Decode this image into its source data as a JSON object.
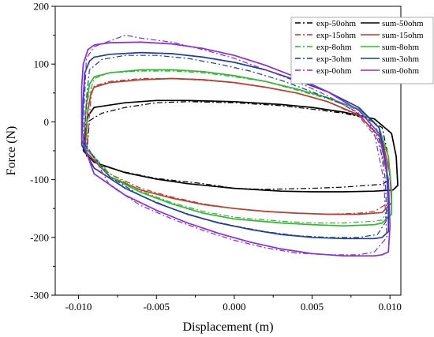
{
  "chart_data": {
    "type": "line",
    "xlabel": "Displacement (m)",
    "ylabel": "Force (N)",
    "xlim": [
      -0.0115,
      0.0107
    ],
    "ylim": [
      -300,
      200
    ],
    "xticks": [
      -0.01,
      -0.005,
      0.0,
      0.005,
      0.01
    ],
    "xtick_labels": [
      "-0.010",
      "-0.005",
      "0.000",
      "0.005",
      "0.010"
    ],
    "yticks": [
      -300,
      -200,
      -100,
      0,
      100,
      200
    ],
    "ytick_labels": [
      "-300",
      "-200",
      "-100",
      "0",
      "100",
      "200"
    ],
    "legend_position": "top-right",
    "legend_columns": 2,
    "series": [
      {
        "name": "exp-50ohm",
        "style": "dash-dot",
        "color": "#000000",
        "column": 0,
        "upper": [
          [
            -0.0095,
            -60
          ],
          [
            -0.0093,
            2
          ],
          [
            -0.0085,
            15
          ],
          [
            -0.007,
            25
          ],
          [
            -0.005,
            33
          ],
          [
            -0.003,
            35
          ],
          [
            0.0,
            33
          ],
          [
            0.003,
            28
          ],
          [
            0.005,
            22
          ],
          [
            0.007,
            15
          ],
          [
            0.0085,
            6
          ],
          [
            0.0095,
            -10
          ],
          [
            0.0099,
            -60
          ],
          [
            0.01,
            -100
          ]
        ],
        "lower": [
          [
            0.01,
            -100
          ],
          [
            0.0095,
            -108
          ],
          [
            0.007,
            -113
          ],
          [
            0.005,
            -115
          ],
          [
            0.002,
            -117
          ],
          [
            0.0,
            -115
          ],
          [
            -0.002,
            -107
          ],
          [
            -0.005,
            -98
          ],
          [
            -0.007,
            -87
          ],
          [
            -0.0085,
            -76
          ],
          [
            -0.0095,
            -60
          ]
        ]
      },
      {
        "name": "sum-50ohm",
        "style": "solid",
        "color": "#000000",
        "column": 1,
        "upper": [
          [
            -0.0097,
            -50
          ],
          [
            -0.0094,
            10
          ],
          [
            -0.009,
            25
          ],
          [
            -0.007,
            33
          ],
          [
            -0.005,
            37
          ],
          [
            -0.003,
            37
          ],
          [
            0.0,
            35
          ],
          [
            0.003,
            30
          ],
          [
            0.005,
            25
          ],
          [
            0.007,
            17
          ],
          [
            0.009,
            5
          ],
          [
            0.0101,
            -20
          ],
          [
            0.0104,
            -60
          ],
          [
            0.0105,
            -110
          ]
        ],
        "lower": [
          [
            0.0105,
            -110
          ],
          [
            0.0102,
            -118
          ],
          [
            0.009,
            -120
          ],
          [
            0.007,
            -121
          ],
          [
            0.005,
            -121
          ],
          [
            0.003,
            -120
          ],
          [
            0.0,
            -115
          ],
          [
            -0.003,
            -107
          ],
          [
            -0.005,
            -99
          ],
          [
            -0.007,
            -88
          ],
          [
            -0.009,
            -70
          ],
          [
            -0.0097,
            -50
          ]
        ]
      },
      {
        "name": "exp-15ohm",
        "style": "dash-dot",
        "color": "#c0392b",
        "column": 0,
        "upper": [
          [
            -0.0095,
            -55
          ],
          [
            -0.0092,
            45
          ],
          [
            -0.009,
            62
          ],
          [
            -0.008,
            70
          ],
          [
            -0.006,
            75
          ],
          [
            -0.004,
            75
          ],
          [
            -0.002,
            72
          ],
          [
            0.0,
            68
          ],
          [
            0.002,
            60
          ],
          [
            0.004,
            50
          ],
          [
            0.006,
            35
          ],
          [
            0.008,
            10
          ],
          [
            0.0092,
            -30
          ],
          [
            0.0098,
            -90
          ],
          [
            0.0099,
            -140
          ]
        ],
        "lower": [
          [
            0.0099,
            -140
          ],
          [
            0.009,
            -155
          ],
          [
            0.008,
            -158
          ],
          [
            0.006,
            -160
          ],
          [
            0.004,
            -158
          ],
          [
            0.002,
            -155
          ],
          [
            0.0,
            -150
          ],
          [
            -0.002,
            -142
          ],
          [
            -0.004,
            -130
          ],
          [
            -0.006,
            -115
          ],
          [
            -0.008,
            -90
          ],
          [
            -0.0095,
            -55
          ]
        ]
      },
      {
        "name": "sum-15ohm",
        "style": "solid",
        "color": "#c0392b",
        "column": 1,
        "upper": [
          [
            -0.0096,
            -50
          ],
          [
            -0.0094,
            20
          ],
          [
            -0.0092,
            50
          ],
          [
            -0.009,
            60
          ],
          [
            -0.008,
            68
          ],
          [
            -0.006,
            73
          ],
          [
            -0.004,
            75
          ],
          [
            -0.002,
            73
          ],
          [
            0.0,
            68
          ],
          [
            0.002,
            60
          ],
          [
            0.004,
            50
          ],
          [
            0.006,
            35
          ],
          [
            0.008,
            12
          ],
          [
            0.0095,
            -30
          ],
          [
            0.01,
            -90
          ],
          [
            0.0101,
            -140
          ]
        ],
        "lower": [
          [
            0.0101,
            -140
          ],
          [
            0.0095,
            -157
          ],
          [
            0.008,
            -160
          ],
          [
            0.006,
            -160
          ],
          [
            0.004,
            -158
          ],
          [
            0.002,
            -155
          ],
          [
            0.0,
            -150
          ],
          [
            -0.002,
            -143
          ],
          [
            -0.004,
            -132
          ],
          [
            -0.006,
            -118
          ],
          [
            -0.008,
            -95
          ],
          [
            -0.0096,
            -50
          ]
        ]
      },
      {
        "name": "exp-8ohm",
        "style": "dash-dot",
        "color": "#2eb82e",
        "column": 0,
        "upper": [
          [
            -0.0095,
            -45
          ],
          [
            -0.0094,
            40
          ],
          [
            -0.009,
            75
          ],
          [
            -0.008,
            85
          ],
          [
            -0.006,
            88
          ],
          [
            -0.004,
            88
          ],
          [
            -0.002,
            85
          ],
          [
            0.0,
            78
          ],
          [
            0.002,
            70
          ],
          [
            0.004,
            55
          ],
          [
            0.006,
            40
          ],
          [
            0.008,
            20
          ],
          [
            0.009,
            0
          ],
          [
            0.0095,
            -40
          ],
          [
            0.0098,
            -100
          ],
          [
            0.0099,
            -150
          ]
        ],
        "lower": [
          [
            0.0099,
            -150
          ],
          [
            0.0095,
            -170
          ],
          [
            0.009,
            -172
          ],
          [
            0.007,
            -175
          ],
          [
            0.005,
            -175
          ],
          [
            0.003,
            -172
          ],
          [
            0.0,
            -165
          ],
          [
            -0.002,
            -155
          ],
          [
            -0.004,
            -140
          ],
          [
            -0.006,
            -120
          ],
          [
            -0.008,
            -90
          ],
          [
            -0.0095,
            -45
          ]
        ]
      },
      {
        "name": "sum-8ohm",
        "style": "solid",
        "color": "#2eb82e",
        "column": 1,
        "upper": [
          [
            -0.0097,
            -40
          ],
          [
            -0.0095,
            30
          ],
          [
            -0.0093,
            65
          ],
          [
            -0.009,
            78
          ],
          [
            -0.008,
            85
          ],
          [
            -0.006,
            90
          ],
          [
            -0.004,
            90
          ],
          [
            -0.002,
            87
          ],
          [
            0.0,
            80
          ],
          [
            0.002,
            70
          ],
          [
            0.004,
            57
          ],
          [
            0.006,
            42
          ],
          [
            0.008,
            22
          ],
          [
            0.0093,
            -10
          ],
          [
            0.0099,
            -60
          ],
          [
            0.0101,
            -120
          ],
          [
            0.0101,
            -160
          ]
        ],
        "lower": [
          [
            0.0101,
            -160
          ],
          [
            0.0095,
            -175
          ],
          [
            0.009,
            -178
          ],
          [
            0.007,
            -180
          ],
          [
            0.005,
            -178
          ],
          [
            0.003,
            -175
          ],
          [
            0.0,
            -168
          ],
          [
            -0.002,
            -158
          ],
          [
            -0.004,
            -142
          ],
          [
            -0.006,
            -122
          ],
          [
            -0.008,
            -95
          ],
          [
            -0.0097,
            -40
          ]
        ]
      },
      {
        "name": "exp-3ohm",
        "style": "dash-dot",
        "color": "#1f3fa0",
        "column": 0,
        "upper": [
          [
            -0.0096,
            -40
          ],
          [
            -0.0095,
            40
          ],
          [
            -0.0093,
            90
          ],
          [
            -0.0085,
            108
          ],
          [
            -0.007,
            115
          ],
          [
            -0.005,
            115
          ],
          [
            -0.003,
            110
          ],
          [
            -0.001,
            100
          ],
          [
            0.001,
            88
          ],
          [
            0.003,
            72
          ],
          [
            0.005,
            52
          ],
          [
            0.007,
            30
          ],
          [
            0.0085,
            5
          ],
          [
            0.0093,
            -30
          ],
          [
            0.0097,
            -100
          ],
          [
            0.0098,
            -170
          ]
        ],
        "lower": [
          [
            0.0098,
            -170
          ],
          [
            0.0092,
            -195
          ],
          [
            0.008,
            -200
          ],
          [
            0.006,
            -200
          ],
          [
            0.004,
            -197
          ],
          [
            0.002,
            -190
          ],
          [
            0.0,
            -180
          ],
          [
            -0.002,
            -168
          ],
          [
            -0.004,
            -150
          ],
          [
            -0.006,
            -128
          ],
          [
            -0.008,
            -95
          ],
          [
            -0.0096,
            -40
          ]
        ]
      },
      {
        "name": "sum-3ohm",
        "style": "solid",
        "color": "#1f3fa0",
        "column": 1,
        "upper": [
          [
            -0.0098,
            -40
          ],
          [
            -0.0097,
            40
          ],
          [
            -0.0096,
            85
          ],
          [
            -0.0093,
            105
          ],
          [
            -0.009,
            112
          ],
          [
            -0.008,
            117
          ],
          [
            -0.006,
            120
          ],
          [
            -0.004,
            118
          ],
          [
            -0.002,
            112
          ],
          [
            0.0,
            103
          ],
          [
            0.002,
            90
          ],
          [
            0.004,
            72
          ],
          [
            0.006,
            52
          ],
          [
            0.008,
            25
          ],
          [
            0.0093,
            -10
          ],
          [
            0.0098,
            -80
          ],
          [
            0.0099,
            -150
          ],
          [
            0.0099,
            -190
          ]
        ],
        "lower": [
          [
            0.0099,
            -190
          ],
          [
            0.0095,
            -200
          ],
          [
            0.009,
            -202
          ],
          [
            0.007,
            -202
          ],
          [
            0.005,
            -200
          ],
          [
            0.003,
            -195
          ],
          [
            0.001,
            -186
          ],
          [
            -0.001,
            -175
          ],
          [
            -0.003,
            -160
          ],
          [
            -0.005,
            -140
          ],
          [
            -0.007,
            -115
          ],
          [
            -0.009,
            -80
          ],
          [
            -0.0098,
            -40
          ]
        ]
      },
      {
        "name": "exp-0ohm",
        "style": "dash-dot",
        "color": "#8a2be2",
        "column": 0,
        "upper": [
          [
            -0.0097,
            -30
          ],
          [
            -0.0096,
            50
          ],
          [
            -0.0095,
            110
          ],
          [
            -0.009,
            130
          ],
          [
            -0.008,
            140
          ],
          [
            -0.007,
            150
          ],
          [
            -0.006,
            145
          ],
          [
            -0.004,
            138
          ],
          [
            -0.002,
            125
          ],
          [
            0.0,
            110
          ],
          [
            0.002,
            90
          ],
          [
            0.004,
            70
          ],
          [
            0.006,
            45
          ],
          [
            0.008,
            15
          ],
          [
            0.009,
            -20
          ],
          [
            0.0096,
            -100
          ],
          [
            0.0098,
            -200
          ]
        ],
        "lower": [
          [
            0.0098,
            -200
          ],
          [
            0.009,
            -225
          ],
          [
            0.008,
            -230
          ],
          [
            0.006,
            -230
          ],
          [
            0.004,
            -227
          ],
          [
            0.002,
            -218
          ],
          [
            0.0,
            -205
          ],
          [
            -0.002,
            -188
          ],
          [
            -0.004,
            -168
          ],
          [
            -0.006,
            -145
          ],
          [
            -0.008,
            -110
          ],
          [
            -0.0097,
            -30
          ]
        ]
      },
      {
        "name": "sum-0ohm",
        "style": "solid",
        "color": "#8a2be2",
        "column": 1,
        "upper": [
          [
            -0.0098,
            -30
          ],
          [
            -0.0098,
            60
          ],
          [
            -0.0097,
            100
          ],
          [
            -0.0094,
            125
          ],
          [
            -0.009,
            133
          ],
          [
            -0.008,
            137
          ],
          [
            -0.006,
            138
          ],
          [
            -0.004,
            135
          ],
          [
            -0.002,
            127
          ],
          [
            0.0,
            115
          ],
          [
            0.002,
            98
          ],
          [
            0.004,
            77
          ],
          [
            0.006,
            52
          ],
          [
            0.008,
            20
          ],
          [
            0.0093,
            -20
          ],
          [
            0.0099,
            -100
          ],
          [
            0.01,
            -180
          ],
          [
            0.0099,
            -225
          ]
        ],
        "lower": [
          [
            0.0099,
            -225
          ],
          [
            0.0095,
            -230
          ],
          [
            0.009,
            -232
          ],
          [
            0.007,
            -232
          ],
          [
            0.005,
            -228
          ],
          [
            0.003,
            -220
          ],
          [
            0.001,
            -208
          ],
          [
            -0.001,
            -193
          ],
          [
            -0.003,
            -175
          ],
          [
            -0.005,
            -153
          ],
          [
            -0.007,
            -127
          ],
          [
            -0.009,
            -90
          ],
          [
            -0.0098,
            -30
          ]
        ]
      }
    ]
  }
}
